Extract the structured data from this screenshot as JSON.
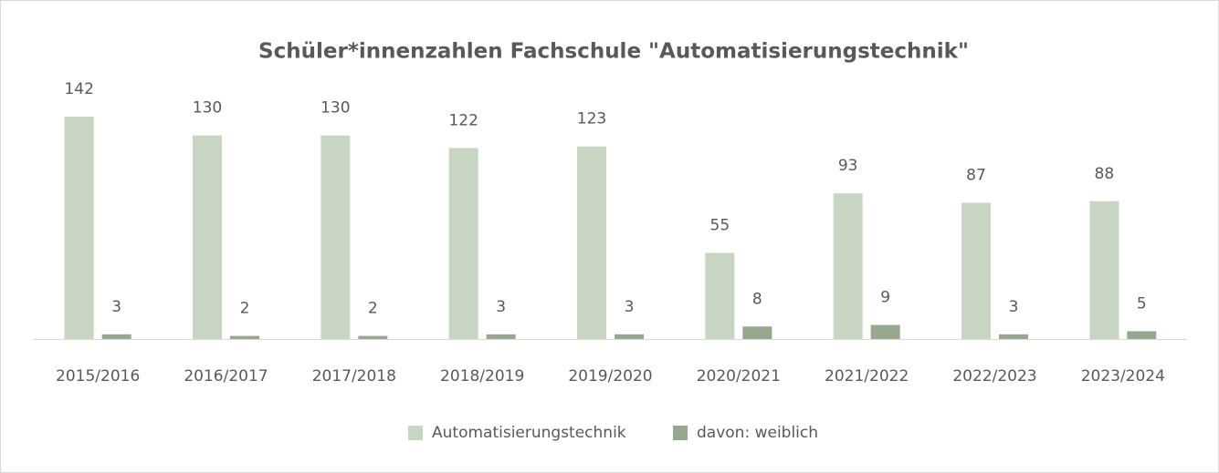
{
  "chart_data": {
    "type": "bar",
    "title": "Schüler*innenzahlen Fachschule \"Automatisierungstechnik\"",
    "categories": [
      "2015/2016",
      "2016/2017",
      "2017/2018",
      "2018/2019",
      "2019/2020",
      "2020/2021",
      "2021/2022",
      "2022/2023",
      "2023/2024"
    ],
    "series": [
      {
        "name": "Automatisierungstechnik",
        "color": "#c9d5c3",
        "values": [
          142,
          130,
          130,
          122,
          123,
          55,
          93,
          87,
          88
        ]
      },
      {
        "name": "davon: weiblich",
        "color": "#98a88e",
        "values": [
          3,
          2,
          2,
          3,
          3,
          8,
          9,
          3,
          5
        ]
      }
    ],
    "legend": "bottom"
  }
}
